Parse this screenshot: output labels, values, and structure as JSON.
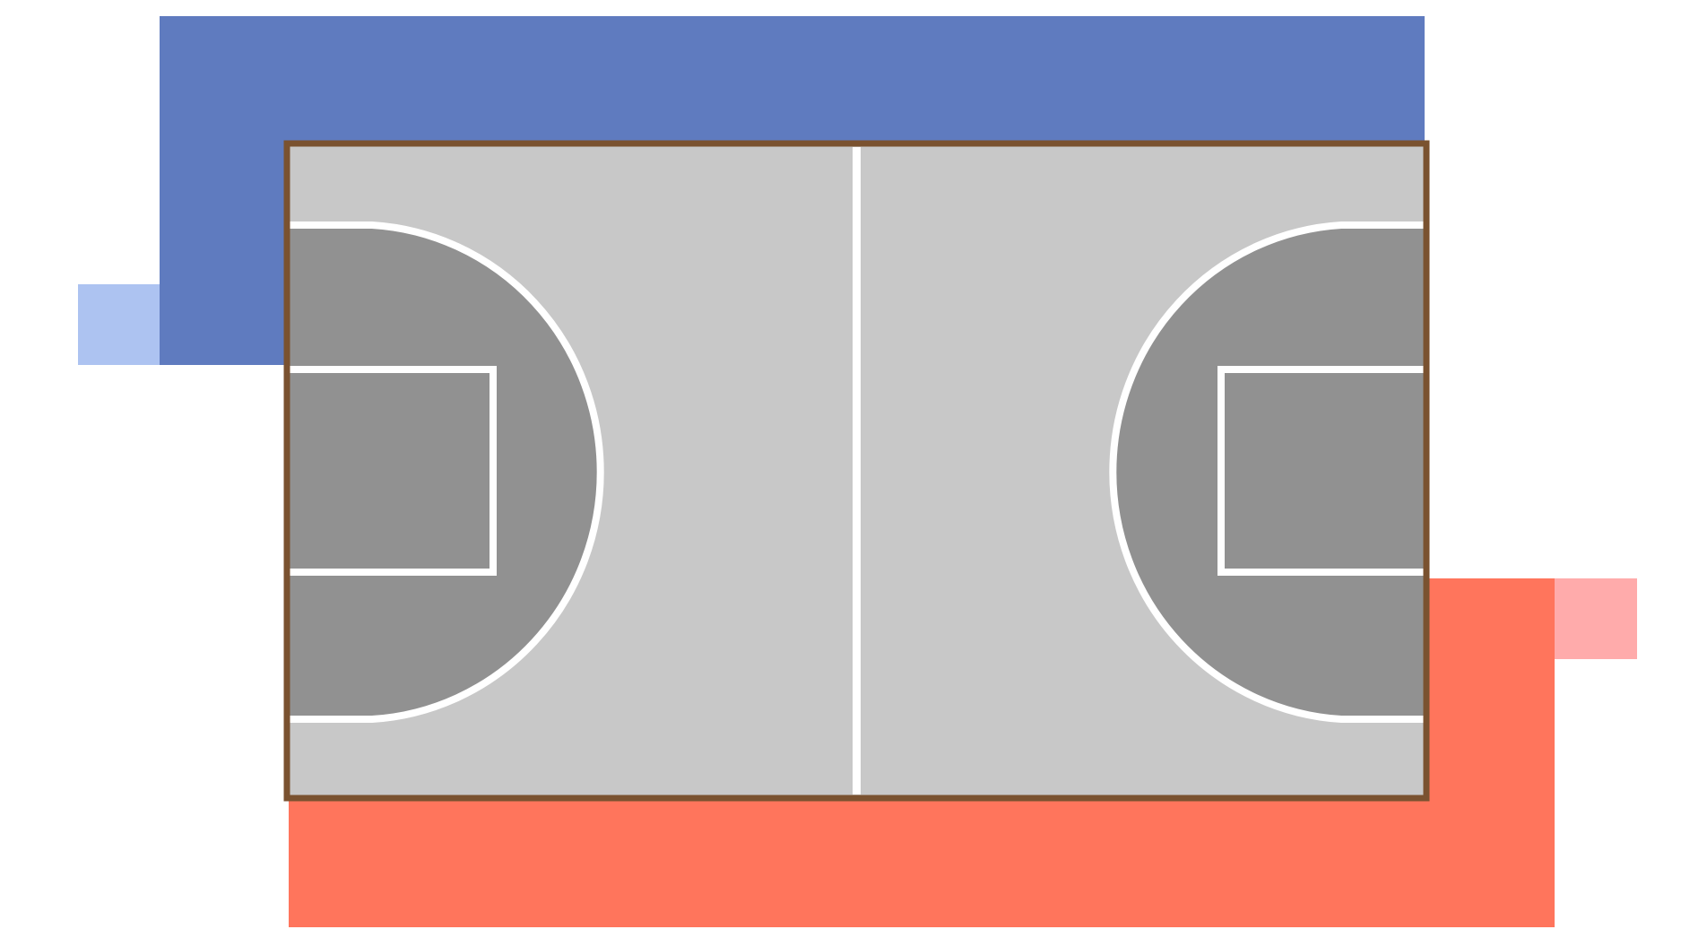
{
  "diagram": {
    "kind": "basketball-court",
    "colors": {
      "background": "#ffffff",
      "team_blue": "#5f7bbf",
      "team_blue_light": "#adc3f1",
      "team_red": "#ff755c",
      "team_red_light": "#ffabab",
      "court_floor": "#c8c8c8",
      "key_area": "#919191",
      "court_lines": "#ffffff",
      "court_border": "#7a5230"
    }
  }
}
